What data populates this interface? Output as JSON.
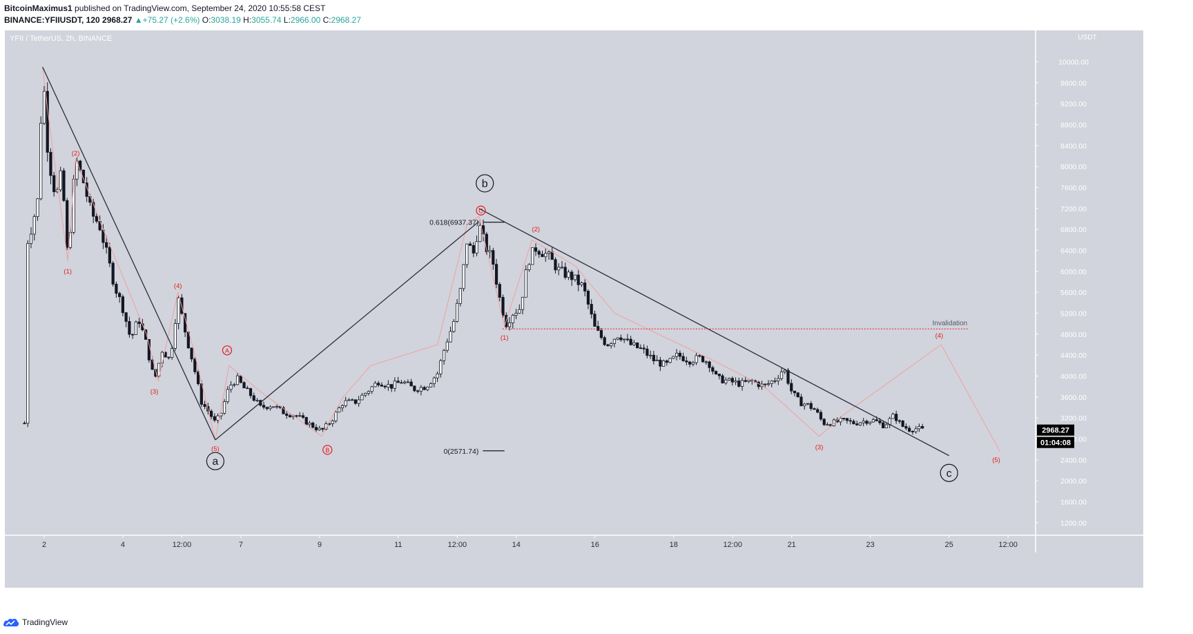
{
  "header": {
    "author": "BitcoinMaximus1",
    "published_text": "published on TradingView.com, September 24, 2020 10:55:58 CEST",
    "symbol_line": "BINANCE:YFIIUSDT, 120",
    "last_price": "2968.27",
    "change": "+75.27 (+2.6%)",
    "ohlc": {
      "o_label": "O:",
      "o": "3038.19",
      "h_label": "H:",
      "h": "3055.74",
      "l_label": "L:",
      "l": "2966.00",
      "c_label": "C:",
      "c": "2968.27"
    }
  },
  "colors": {
    "background": "#d1d4dc",
    "candle": "#131722",
    "wave_label": "#e51a1a",
    "trendline": "#2a2e39",
    "subwave_line": "#f0a0a0",
    "invalidation_line": "#e51a1a",
    "price_label_bg": "#000000"
  },
  "footer": {
    "brand": "TradingView",
    "logo_icon": "tradingview-cloud-icon"
  },
  "chart_data": {
    "type": "candlestick",
    "title": "YFII / TetherUS, 2h, BINANCE",
    "currency_label": "USDT",
    "ylim": [
      960,
      10600
    ],
    "y_ticks": [
      1200,
      1600,
      2000,
      2400,
      2800,
      3200,
      3600,
      4000,
      4400,
      4800,
      5200,
      5600,
      6000,
      6400,
      6800,
      7200,
      7600,
      8000,
      8400,
      8800,
      9200,
      9600,
      10000
    ],
    "x_ticks": [
      {
        "label": "2",
        "day": 2.0
      },
      {
        "label": "4",
        "day": 4.0
      },
      {
        "label": "12:00",
        "day": 5.5
      },
      {
        "label": "7",
        "day": 7.0
      },
      {
        "label": "9",
        "day": 9.0
      },
      {
        "label": "11",
        "day": 11.0
      },
      {
        "label": "12:00",
        "day": 12.5
      },
      {
        "label": "14",
        "day": 14.0
      },
      {
        "label": "16",
        "day": 16.0
      },
      {
        "label": "18",
        "day": 18.0
      },
      {
        "label": "12:00",
        "day": 19.5
      },
      {
        "label": "21",
        "day": 21.0
      },
      {
        "label": "23",
        "day": 23.0
      },
      {
        "label": "25",
        "day": 25.0
      },
      {
        "label": "12:00",
        "day": 26.5
      }
    ],
    "xlim_days": [
      1.0,
      27.2
    ],
    "candle_interval_days": 0.0833,
    "candle_path": [
      [
        1.5,
        3100
      ],
      [
        1.55,
        6500
      ],
      [
        1.7,
        6900
      ],
      [
        1.85,
        7400
      ],
      [
        1.96,
        9900
      ],
      [
        2.1,
        8200
      ],
      [
        2.3,
        7400
      ],
      [
        2.45,
        7900
      ],
      [
        2.6,
        6200
      ],
      [
        2.8,
        8150
      ],
      [
        3.0,
        7700
      ],
      [
        3.2,
        7100
      ],
      [
        3.4,
        6900
      ],
      [
        3.6,
        6300
      ],
      [
        3.8,
        5700
      ],
      [
        4.0,
        5300
      ],
      [
        4.2,
        4700
      ],
      [
        4.4,
        5100
      ],
      [
        4.6,
        4600
      ],
      [
        4.8,
        3900
      ],
      [
        5.0,
        4500
      ],
      [
        5.2,
        4300
      ],
      [
        5.4,
        5500
      ],
      [
        5.6,
        4800
      ],
      [
        5.8,
        4200
      ],
      [
        6.0,
        3500
      ],
      [
        6.2,
        3300
      ],
      [
        6.35,
        3100
      ],
      [
        6.5,
        3300
      ],
      [
        6.7,
        3800
      ],
      [
        6.9,
        3950
      ],
      [
        7.1,
        3750
      ],
      [
        7.3,
        3600
      ],
      [
        7.5,
        3400
      ],
      [
        7.8,
        3450
      ],
      [
        8.1,
        3300
      ],
      [
        8.4,
        3250
      ],
      [
        8.7,
        3100
      ],
      [
        9.05,
        2950
      ],
      [
        9.3,
        3150
      ],
      [
        9.6,
        3500
      ],
      [
        9.9,
        3500
      ],
      [
        10.2,
        3700
      ],
      [
        10.5,
        3900
      ],
      [
        10.8,
        3800
      ],
      [
        11.1,
        3900
      ],
      [
        11.4,
        3750
      ],
      [
        11.7,
        3800
      ],
      [
        12.0,
        4050
      ],
      [
        12.2,
        4600
      ],
      [
        12.4,
        5000
      ],
      [
        12.6,
        5700
      ],
      [
        12.75,
        6600
      ],
      [
        12.9,
        6300
      ],
      [
        13.05,
        6900
      ],
      [
        13.2,
        6500
      ],
      [
        13.4,
        6200
      ],
      [
        13.6,
        5400
      ],
      [
        13.75,
        5000
      ],
      [
        13.9,
        5200
      ],
      [
        14.1,
        5300
      ],
      [
        14.3,
        6200
      ],
      [
        14.5,
        6450
      ],
      [
        14.8,
        6300
      ],
      [
        15.1,
        6000
      ],
      [
        15.4,
        5900
      ],
      [
        15.7,
        5700
      ],
      [
        16.0,
        4900
      ],
      [
        16.3,
        4600
      ],
      [
        16.6,
        4800
      ],
      [
        16.9,
        4600
      ],
      [
        17.2,
        4500
      ],
      [
        17.5,
        4300
      ],
      [
        17.8,
        4200
      ],
      [
        18.1,
        4400
      ],
      [
        18.4,
        4300
      ],
      [
        18.7,
        4350
      ],
      [
        18.9,
        4250
      ],
      [
        19.1,
        3950
      ],
      [
        19.4,
        3900
      ],
      [
        19.7,
        3850
      ],
      [
        20.0,
        3900
      ],
      [
        20.3,
        3800
      ],
      [
        20.6,
        3950
      ],
      [
        20.8,
        4150
      ],
      [
        21.0,
        3700
      ],
      [
        21.2,
        3500
      ],
      [
        21.4,
        3450
      ],
      [
        21.6,
        3350
      ],
      [
        21.8,
        3100
      ],
      [
        22.0,
        3100
      ],
      [
        22.3,
        3150
      ],
      [
        22.6,
        3100
      ],
      [
        22.9,
        3150
      ],
      [
        23.1,
        3150
      ],
      [
        23.35,
        3050
      ],
      [
        23.6,
        3250
      ],
      [
        23.8,
        3050
      ],
      [
        24.0,
        2980
      ],
      [
        24.2,
        3000
      ],
      [
        24.35,
        2968
      ]
    ],
    "trend_lines": [
      {
        "name": "wave-a-line",
        "points": [
          [
            1.96,
            9900
          ],
          [
            6.35,
            2780
          ]
        ]
      },
      {
        "name": "wave-b-line",
        "points": [
          [
            6.35,
            2780
          ],
          [
            13.05,
            6950
          ]
        ]
      },
      {
        "name": "wave-c-line",
        "points": [
          [
            13.05,
            7200
          ],
          [
            25.0,
            2480
          ]
        ]
      }
    ],
    "subwave_lines": [
      [
        [
          1.96,
          9900
        ],
        [
          2.1,
          9000
        ],
        [
          2.6,
          6200
        ],
        [
          2.8,
          8150
        ],
        [
          3.5,
          6800
        ],
        [
          4.0,
          5900
        ],
        [
          4.6,
          4800
        ],
        [
          4.9,
          3900
        ],
        [
          5.4,
          5600
        ],
        [
          5.8,
          4500
        ],
        [
          6.35,
          2780
        ]
      ],
      [
        [
          6.35,
          2780
        ],
        [
          6.7,
          4200
        ],
        [
          7.5,
          3700
        ],
        [
          9.05,
          2850
        ],
        [
          9.6,
          3600
        ],
        [
          10.3,
          4200
        ],
        [
          12.0,
          4600
        ],
        [
          12.75,
          6900
        ],
        [
          13.05,
          7050
        ]
      ],
      [
        [
          13.05,
          7050
        ],
        [
          13.7,
          4950
        ],
        [
          14.4,
          6600
        ],
        [
          15.5,
          6100
        ],
        [
          16.5,
          5200
        ],
        [
          19.0,
          4300
        ],
        [
          20.3,
          3800
        ],
        [
          21.7,
          2850
        ],
        [
          22.3,
          3250
        ],
        [
          24.8,
          4600
        ],
        [
          26.3,
          2550
        ]
      ]
    ],
    "fib_levels": [
      {
        "label": "0.618(6937.37)",
        "value": 6937.37,
        "x_start": 13.15,
        "x_end": 13.7
      },
      {
        "label": "0(2571.74)",
        "value": 2571.74,
        "x_start": 13.15,
        "x_end": 13.7
      }
    ],
    "invalidation": {
      "label": "Invalidation",
      "value": 4900,
      "x_start": 13.65,
      "x_end": 25.5
    },
    "circle_labels": [
      {
        "text": "a",
        "day": 6.35,
        "price": 2375,
        "color": "#131722"
      },
      {
        "text": "b",
        "day": 13.2,
        "price": 7680,
        "color": "#131722"
      },
      {
        "text": "c",
        "day": 25.0,
        "price": 2150,
        "color": "#131722"
      },
      {
        "text": "A",
        "day": 6.65,
        "price": 4490,
        "color": "#e51a1a",
        "small": true
      },
      {
        "text": "B",
        "day": 9.2,
        "price": 2590,
        "color": "#e51a1a",
        "small": true
      },
      {
        "text": "C",
        "day": 13.1,
        "price": 7160,
        "color": "#e51a1a",
        "small": true
      }
    ],
    "wave_labels": [
      {
        "text": "(1)",
        "day": 2.6,
        "price": 6000
      },
      {
        "text": "(2)",
        "day": 2.8,
        "price": 8250
      },
      {
        "text": "(3)",
        "day": 4.8,
        "price": 3700
      },
      {
        "text": "(4)",
        "day": 5.4,
        "price": 5720
      },
      {
        "text": "(5)",
        "day": 6.35,
        "price": 2610
      },
      {
        "text": "(1)",
        "day": 13.7,
        "price": 4730
      },
      {
        "text": "(2)",
        "day": 14.5,
        "price": 6800
      },
      {
        "text": "(3)",
        "day": 21.7,
        "price": 2640
      },
      {
        "text": "(4)",
        "day": 24.75,
        "price": 4770
      },
      {
        "text": "(5)",
        "day": 26.2,
        "price": 2400
      }
    ],
    "price_labels": {
      "last": "2968.27",
      "countdown": "01:04:08"
    }
  }
}
